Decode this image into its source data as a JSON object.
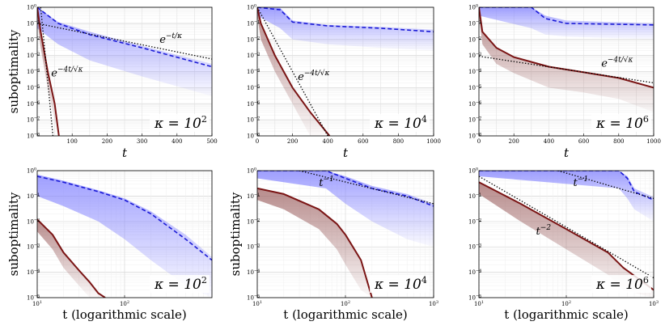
{
  "chart_data": [
    {
      "type": "line",
      "xscale": "linear",
      "yscale": "log",
      "xlim": [
        0,
        500
      ],
      "ylim": [
        1e-08,
        1
      ],
      "xticks": [
        100,
        200,
        300,
        400,
        500
      ],
      "xtick_labels": [
        "100",
        "200",
        "300",
        "400",
        "500"
      ],
      "ytick_labels": [
        "10^0",
        "10^-1",
        "10^-2",
        "10^-3",
        "10^-4",
        "10^-5",
        "10^-6",
        "10^-7",
        "10^-8"
      ],
      "xlabel": "t",
      "ylabel": "suboptimality",
      "kappa_label": "κ = 10^2",
      "series": [
        {
          "name": "dashed-blue",
          "style": "dashed",
          "color": "#1a1ad6",
          "x": [
            0,
            60,
            150,
            300,
            500
          ],
          "y": [
            1,
            0.1,
            0.02,
            0.003,
            0.0002
          ]
        },
        {
          "name": "dark-red",
          "style": "solid",
          "color": "#7a1414",
          "x": [
            0,
            10,
            30,
            50,
            62
          ],
          "y": [
            1,
            0.03,
            0.0001,
            1e-06,
            1e-08
          ]
        },
        {
          "name": "e^{-t/κ}",
          "style": "dotted",
          "color": "#000000",
          "x": [
            0,
            500
          ],
          "y": [
            0.1,
            0.0006
          ]
        },
        {
          "name": "e^{-4t/√κ}",
          "style": "dotted",
          "color": "#000000",
          "x": [
            10,
            45
          ],
          "y": [
            1,
            1e-08
          ]
        }
      ],
      "bands": [
        {
          "color": "#8080ff",
          "x": [
            0,
            60,
            150,
            300,
            500
          ],
          "upper": [
            1,
            0.12,
            0.03,
            0.004,
            0.0003
          ],
          "lower": [
            0.05,
            0.005,
            0.0005,
            5e-05,
            3e-06
          ]
        },
        {
          "color": "#a06666",
          "x": [
            0,
            10,
            30,
            50,
            62
          ],
          "upper": [
            1,
            0.03,
            0.0001,
            1e-06,
            1e-08
          ],
          "lower": [
            0.2,
            0.003,
            1e-05,
            1e-07,
            1e-08
          ]
        }
      ],
      "annotations": [
        {
          "text": "e",
          "sup": "−t/κ",
          "at": [
            350,
            0.006
          ]
        },
        {
          "text": "e",
          "sup": "−4t/√κ",
          "at": [
            40,
            5e-05
          ]
        }
      ]
    },
    {
      "type": "line",
      "xscale": "linear",
      "yscale": "log",
      "xlim": [
        0,
        1000
      ],
      "ylim": [
        1e-08,
        1
      ],
      "xticks": [
        0,
        200,
        400,
        600,
        800,
        1000
      ],
      "xtick_labels": [
        "0",
        "200",
        "400",
        "600",
        "800",
        "1000"
      ],
      "ytick_labels": [
        "10^0",
        "10^-1",
        "10^-2",
        "10^-3",
        "10^-4",
        "10^-5",
        "10^-6",
        "10^-7",
        "10^-8"
      ],
      "xlabel": "t",
      "ylabel": "",
      "kappa_label": "κ = 10^4",
      "series": [
        {
          "name": "dashed-blue",
          "style": "dashed",
          "color": "#1a1ad6",
          "x": [
            0,
            130,
            200,
            400,
            700,
            1000
          ],
          "y": [
            1,
            0.7,
            0.12,
            0.07,
            0.05,
            0.03
          ]
        },
        {
          "name": "dark-red",
          "style": "solid",
          "color": "#7a1414",
          "x": [
            0,
            20,
            100,
            200,
            300,
            410
          ],
          "y": [
            1,
            0.1,
            0.001,
            1e-05,
            3e-07,
            1e-08
          ]
        },
        {
          "name": "e^{-4t/√κ}",
          "style": "dotted",
          "color": "#000000",
          "x": [
            0,
            400
          ],
          "y": [
            1,
            1e-08
          ]
        }
      ],
      "bands": [
        {
          "color": "#8080ff",
          "x": [
            0,
            130,
            200,
            400,
            700,
            1000
          ],
          "upper": [
            1,
            0.9,
            0.15,
            0.08,
            0.06,
            0.04
          ],
          "lower": [
            0.3,
            0.05,
            0.01,
            0.005,
            0.003,
            0.002
          ]
        },
        {
          "color": "#a06666",
          "x": [
            0,
            20,
            100,
            200,
            300,
            410
          ],
          "upper": [
            1,
            0.1,
            0.001,
            1e-05,
            3e-07,
            1e-08
          ],
          "lower": [
            0.3,
            0.01,
            0.0001,
            1e-06,
            1e-08,
            1e-08
          ]
        }
      ],
      "annotations": [
        {
          "text": "e",
          "sup": "−4t/√κ",
          "at": [
            230,
            3e-05
          ]
        }
      ]
    },
    {
      "type": "line",
      "xscale": "linear",
      "yscale": "log",
      "xlim": [
        0,
        1000
      ],
      "ylim": [
        1e-08,
        1
      ],
      "xticks": [
        0,
        200,
        400,
        600,
        800,
        1000
      ],
      "xtick_labels": [
        "0",
        "200",
        "400",
        "600",
        "800",
        "1000"
      ],
      "ytick_labels": [
        "10^0",
        "10^-1",
        "10^-2",
        "10^-3",
        "10^-4",
        "10^-5",
        "10^-6",
        "10^-7",
        "10^-8"
      ],
      "xlabel": "t",
      "ylabel": "",
      "kappa_label": "κ = 10^6",
      "series": [
        {
          "name": "dashed-blue",
          "style": "dashed",
          "color": "#1a1ad6",
          "x": [
            0,
            300,
            380,
            500,
            1000
          ],
          "y": [
            1,
            1,
            0.2,
            0.1,
            0.08
          ]
        },
        {
          "name": "dark-red",
          "style": "solid",
          "color": "#7a1414",
          "x": [
            0,
            20,
            100,
            200,
            400,
            600,
            800,
            1000
          ],
          "y": [
            1,
            0.03,
            0.003,
            0.0008,
            0.0002,
            9e-05,
            4e-05,
            1e-05
          ]
        },
        {
          "name": "e^{-4t/√κ}",
          "style": "dotted",
          "color": "#000000",
          "x": [
            0,
            1000
          ],
          "y": [
            0.0009,
            2e-05
          ]
        }
      ],
      "bands": [
        {
          "color": "#8080ff",
          "x": [
            0,
            300,
            380,
            500,
            1000
          ],
          "upper": [
            1,
            1,
            0.3,
            0.15,
            0.1
          ],
          "lower": [
            0.3,
            0.05,
            0.02,
            0.015,
            0.01
          ]
        },
        {
          "color": "#a06666",
          "x": [
            0,
            20,
            100,
            200,
            400,
            600,
            800,
            1000
          ],
          "upper": [
            1,
            0.03,
            0.003,
            0.0008,
            0.0002,
            9e-05,
            4e-05,
            1e-05
          ],
          "lower": [
            0.3,
            0.005,
            0.0003,
            8e-05,
            1e-05,
            5e-06,
            2e-06,
            3e-07
          ]
        }
      ],
      "annotations": [
        {
          "text": "e",
          "sup": "−4t/√κ",
          "at": [
            700,
            0.0002
          ]
        }
      ]
    },
    {
      "type": "line",
      "xscale": "log",
      "yscale": "log",
      "xlim": [
        10,
        1000
      ],
      "ylim": [
        1e-05,
        1
      ],
      "xticks": [
        10,
        100
      ],
      "xtick_labels": [
        "10^1",
        "10^2"
      ],
      "ytick_labels": [
        "10^0",
        "10^-1",
        "10^-2",
        "10^-3",
        "10^-4",
        "10^-5"
      ],
      "xlabel": "t (logarithmic scale)",
      "ylabel": "suboptimality",
      "kappa_label": "κ = 10^2",
      "series": [
        {
          "name": "dashed-blue",
          "style": "dashed",
          "color": "#1a1ad6",
          "x": [
            10,
            20,
            50,
            100,
            200,
            500,
            1000
          ],
          "y": [
            0.6,
            0.35,
            0.15,
            0.07,
            0.02,
            0.002,
            0.0003
          ]
        },
        {
          "name": "dark-red",
          "style": "solid",
          "color": "#7a1414",
          "x": [
            10,
            15,
            20,
            30,
            40,
            50,
            60
          ],
          "y": [
            0.012,
            0.003,
            0.0006,
            0.00012,
            4e-05,
            1.5e-05,
            1e-05
          ]
        }
      ],
      "bands": [
        {
          "color": "#8080ff",
          "x": [
            10,
            20,
            50,
            100,
            200,
            500,
            1000
          ],
          "upper": [
            0.7,
            0.4,
            0.17,
            0.08,
            0.025,
            0.003,
            0.0004
          ],
          "lower": [
            0.1,
            0.04,
            0.01,
            0.002,
            0.0003,
            3e-05,
            1e-05
          ]
        },
        {
          "color": "#a06666",
          "x": [
            10,
            15,
            20,
            30,
            40,
            50,
            60
          ],
          "upper": [
            0.012,
            0.003,
            0.0006,
            0.00012,
            4e-05,
            1.5e-05,
            1e-05
          ],
          "lower": [
            0.004,
            0.0008,
            0.00015,
            3e-05,
            1e-05,
            1e-05,
            1e-05
          ]
        }
      ],
      "annotations": []
    },
    {
      "type": "line",
      "xscale": "log",
      "yscale": "log",
      "xlim": [
        10,
        1000
      ],
      "ylim": [
        1e-05,
        1
      ],
      "xticks": [
        10,
        100,
        1000
      ],
      "xtick_labels": [
        "10^1",
        "10^2",
        "10^3"
      ],
      "ytick_labels": [
        "10^0",
        "10^-1",
        "10^-2",
        "10^-3",
        "10^-4",
        "10^-5"
      ],
      "xlabel": "t (logarithmic scale)",
      "ylabel": "suboptimality",
      "kappa_label": "κ = 10^4",
      "series": [
        {
          "name": "dashed-blue",
          "style": "dashed",
          "color": "#1a1ad6",
          "x": [
            10,
            60,
            100,
            200,
            500,
            1000
          ],
          "y": [
            1,
            1,
            0.5,
            0.2,
            0.1,
            0.04
          ]
        },
        {
          "name": "dark-red",
          "style": "solid",
          "color": "#7a1414",
          "x": [
            10,
            20,
            50,
            80,
            100,
            150,
            200
          ],
          "y": [
            0.2,
            0.12,
            0.03,
            0.008,
            0.003,
            0.0003,
            1e-05
          ]
        },
        {
          "name": "t^{-1}",
          "style": "dotted",
          "color": "#000000",
          "x": [
            30,
            1000
          ],
          "y": [
            1,
            0.05
          ]
        }
      ],
      "bands": [
        {
          "color": "#8080ff",
          "x": [
            10,
            60,
            100,
            200,
            500,
            1000
          ],
          "upper": [
            1,
            1,
            0.6,
            0.25,
            0.12,
            0.05
          ],
          "lower": [
            0.5,
            0.2,
            0.05,
            0.01,
            0.002,
            0.001
          ]
        },
        {
          "color": "#a06666",
          "x": [
            10,
            20,
            50,
            80,
            100,
            150,
            200
          ],
          "upper": [
            0.2,
            0.12,
            0.03,
            0.008,
            0.003,
            0.0003,
            1e-05
          ],
          "lower": [
            0.07,
            0.03,
            0.005,
            0.0008,
            0.0002,
            2e-05,
            1e-05
          ]
        }
      ],
      "annotations": [
        {
          "text": "t",
          "sup": "−1",
          "at": [
            50,
            0.25
          ]
        }
      ]
    },
    {
      "type": "line",
      "xscale": "log",
      "yscale": "log",
      "xlim": [
        10,
        1000
      ],
      "ylim": [
        1e-05,
        1
      ],
      "xticks": [
        10,
        100,
        1000
      ],
      "xtick_labels": [
        "10^1",
        "10^2",
        "10^3"
      ],
      "ytick_labels": [
        "10^0",
        "10^-1",
        "10^-2",
        "10^-3",
        "10^-4",
        "10^-5"
      ],
      "xlabel": "t (logarithmic scale)",
      "ylabel": "",
      "kappa_label": "κ = 10^6",
      "series": [
        {
          "name": "dashed-blue",
          "style": "dashed",
          "color": "#1a1ad6",
          "x": [
            10,
            400,
            500,
            600,
            1000
          ],
          "y": [
            1,
            1,
            0.5,
            0.15,
            0.07
          ]
        },
        {
          "name": "dark-red",
          "style": "solid",
          "color": "#7a1414",
          "x": [
            10,
            30,
            100,
            300,
            450,
            1000
          ],
          "y": [
            0.35,
            0.05,
            0.005,
            0.0006,
            0.00015,
            2e-05
          ]
        },
        {
          "name": "t^{-1}",
          "style": "dotted",
          "color": "#000000",
          "x": [
            80,
            1000
          ],
          "y": [
            1,
            0.08
          ]
        },
        {
          "name": "t^{-2}",
          "style": "dotted",
          "color": "#000000",
          "x": [
            10,
            1000
          ],
          "y": [
            0.6,
            6e-05
          ]
        }
      ],
      "bands": [
        {
          "color": "#8080ff",
          "x": [
            10,
            400,
            500,
            600,
            1000
          ],
          "upper": [
            1,
            1,
            0.6,
            0.2,
            0.09
          ],
          "lower": [
            0.6,
            0.2,
            0.08,
            0.03,
            0.01
          ]
        },
        {
          "color": "#a06666",
          "x": [
            10,
            30,
            100,
            300,
            450,
            1000
          ],
          "upper": [
            0.35,
            0.05,
            0.005,
            0.0006,
            0.00015,
            2e-05
          ],
          "lower": [
            0.12,
            0.01,
            0.0008,
            8e-05,
            2e-05,
            1e-05
          ]
        }
      ],
      "annotations": [
        {
          "text": "t",
          "sup": "−1",
          "at": [
            120,
            0.25
          ]
        },
        {
          "text": "t",
          "sup": "−2",
          "at": [
            45,
            0.003
          ]
        }
      ]
    }
  ]
}
